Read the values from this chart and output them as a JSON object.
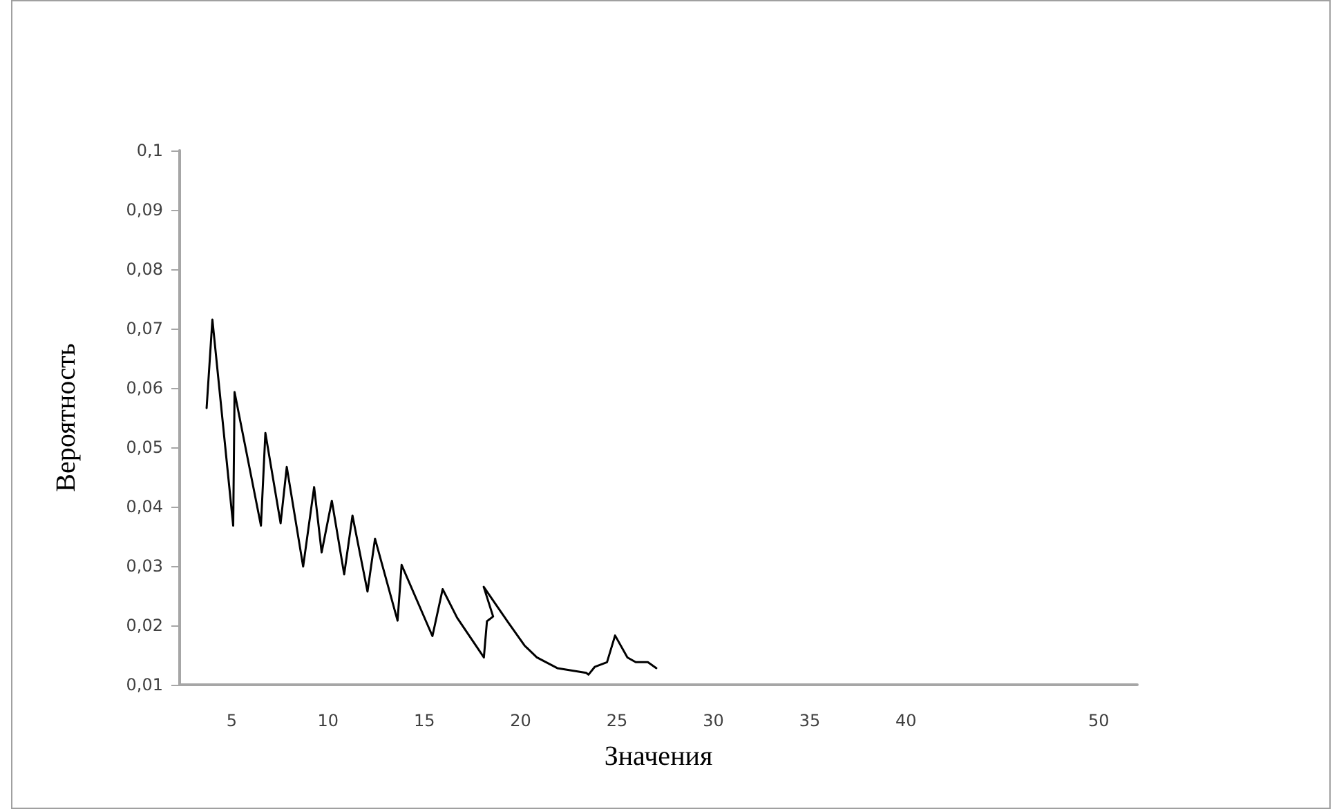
{
  "chart_data": {
    "type": "line",
    "xlabel": "Значения",
    "ylabel": "Вероятность",
    "x": [
      3.7,
      4.0,
      5.08,
      5.15,
      6.52,
      6.75,
      7.54,
      7.86,
      8.71,
      9.28,
      9.67,
      10.2,
      10.84,
      11.27,
      12.05,
      12.44,
      13.61,
      13.82,
      15.42,
      15.95,
      16.7,
      18.09,
      18.25,
      18.57,
      18.08,
      19.35,
      20.2,
      20.84,
      21.9,
      23.4,
      23.52,
      23.84,
      24.48,
      24.9,
      25.54,
      25.97,
      26.6,
      27.04
    ],
    "series": [
      {
        "color": "#000000",
        "values": [
          0.0566,
          0.0715,
          0.0368,
          0.0593,
          0.0368,
          0.0524,
          0.0372,
          0.0467,
          0.0299,
          0.0433,
          0.0323,
          0.041,
          0.0286,
          0.0385,
          0.0257,
          0.0346,
          0.0208,
          0.0302,
          0.0182,
          0.0261,
          0.0213,
          0.0146,
          0.0207,
          0.0215,
          0.0265,
          0.0205,
          0.0166,
          0.0146,
          0.0128,
          0.012,
          0.0117,
          0.013,
          0.0138,
          0.0183,
          0.0146,
          0.0138,
          0.0138,
          0.0128
        ]
      }
    ],
    "xlim": [
      2.3,
      52
    ],
    "xticks": [
      5,
      10,
      15,
      20,
      25,
      30,
      35,
      40,
      50
    ],
    "ylim": [
      0.01,
      0.1
    ],
    "yticks": [
      {
        "value": 0.01,
        "label": "0,01"
      },
      {
        "value": 0.02,
        "label": "0,02"
      },
      {
        "value": 0.03,
        "label": "0,03"
      },
      {
        "value": 0.04,
        "label": "0,04"
      },
      {
        "value": 0.05,
        "label": "0,05"
      },
      {
        "value": 0.06,
        "label": "0,06"
      },
      {
        "value": 0.07,
        "label": "0,07"
      },
      {
        "value": 0.08,
        "label": "0,08"
      },
      {
        "value": 0.09,
        "label": "0,09"
      },
      {
        "value": 0.1,
        "label": "0,1"
      }
    ],
    "grid": false,
    "marker": "none",
    "line_style": "solid"
  }
}
